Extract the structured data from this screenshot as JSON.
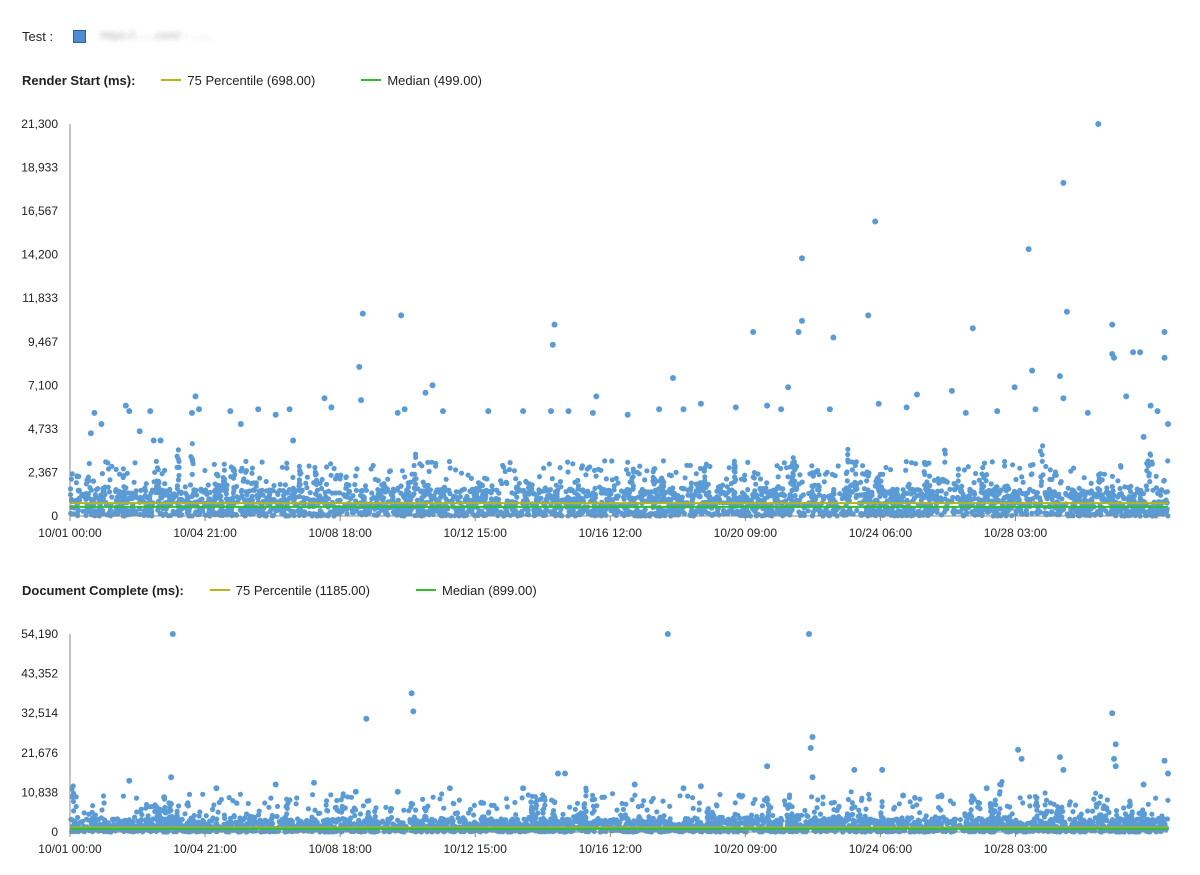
{
  "test": {
    "label": "Test :",
    "url": "https://......com/ - ......",
    "color": "#4f8bd1"
  },
  "chart_data": [
    {
      "type": "scatter",
      "title": "Render Start (ms):",
      "legend": [
        {
          "name": "75 Percentile (698.00)",
          "color": "#b5b516",
          "value": 698
        },
        {
          "name": "Median (499.00)",
          "color": "#2fbf2f",
          "value": 499
        }
      ],
      "ylim": [
        0,
        21300
      ],
      "yticks": [
        "0",
        "2,367",
        "4,733",
        "7,100",
        "9,467",
        "11,833",
        "14,200",
        "16,567",
        "18,933",
        "21,300"
      ],
      "xticks": [
        "10/01 00:00",
        "10/04 21:00",
        "10/08 18:00",
        "10/12 15:00",
        "10/16 12:00",
        "10/20 09:00",
        "10/24 06:00",
        "10/28 03:00"
      ],
      "xlim_days": [
        0,
        31.5
      ],
      "point_color": "#5b9bd5",
      "outliers": [
        [
          0.6,
          4500
        ],
        [
          0.7,
          5600
        ],
        [
          0.9,
          5000
        ],
        [
          1.6,
          6000
        ],
        [
          1.7,
          5700
        ],
        [
          2.0,
          4600
        ],
        [
          2.3,
          5700
        ],
        [
          2.4,
          4100
        ],
        [
          2.6,
          4100
        ],
        [
          3.6,
          6500
        ],
        [
          3.7,
          5800
        ],
        [
          3.5,
          5600
        ],
        [
          4.6,
          5700
        ],
        [
          4.9,
          5000
        ],
        [
          5.4,
          5800
        ],
        [
          5.9,
          5500
        ],
        [
          6.3,
          5800
        ],
        [
          6.4,
          4100
        ],
        [
          7.3,
          6400
        ],
        [
          7.5,
          5900
        ],
        [
          8.4,
          11000
        ],
        [
          8.3,
          8100
        ],
        [
          8.35,
          6300
        ],
        [
          9.5,
          10900
        ],
        [
          9.4,
          5600
        ],
        [
          9.6,
          5800
        ],
        [
          10.2,
          6700
        ],
        [
          10.4,
          7100
        ],
        [
          10.7,
          5700
        ],
        [
          12.0,
          5700
        ],
        [
          13.0,
          5700
        ],
        [
          13.9,
          10400
        ],
        [
          13.85,
          9300
        ],
        [
          13.8,
          5700
        ],
        [
          14.3,
          5700
        ],
        [
          15.1,
          6500
        ],
        [
          15.0,
          5600
        ],
        [
          16.0,
          5500
        ],
        [
          16.9,
          5800
        ],
        [
          17.3,
          7500
        ],
        [
          17.6,
          5800
        ],
        [
          18.1,
          6100
        ],
        [
          19.1,
          5900
        ],
        [
          19.6,
          10000
        ],
        [
          20.0,
          6000
        ],
        [
          20.4,
          5800
        ],
        [
          20.6,
          7000
        ],
        [
          21.0,
          14000
        ],
        [
          20.9,
          10000
        ],
        [
          21.0,
          10600
        ],
        [
          21.9,
          9700
        ],
        [
          21.8,
          5800
        ],
        [
          22.9,
          10900
        ],
        [
          23.1,
          16000
        ],
        [
          23.2,
          6100
        ],
        [
          24.0,
          5900
        ],
        [
          24.3,
          6600
        ],
        [
          25.3,
          6800
        ],
        [
          25.9,
          10200
        ],
        [
          25.7,
          5600
        ],
        [
          26.6,
          5700
        ],
        [
          27.1,
          7000
        ],
        [
          27.5,
          14500
        ],
        [
          27.6,
          7900
        ],
        [
          27.7,
          5800
        ],
        [
          28.5,
          18100
        ],
        [
          28.6,
          11100
        ],
        [
          28.4,
          7600
        ],
        [
          28.5,
          6400
        ],
        [
          29.5,
          21300
        ],
        [
          29.2,
          5600
        ],
        [
          29.9,
          10400
        ],
        [
          29.9,
          8800
        ],
        [
          29.95,
          8600
        ],
        [
          30.5,
          8900
        ],
        [
          30.7,
          8900
        ],
        [
          30.3,
          6500
        ],
        [
          31.0,
          6000
        ],
        [
          31.4,
          10000
        ],
        [
          31.4,
          8600
        ],
        [
          31.2,
          5700
        ],
        [
          30.8,
          4300
        ],
        [
          31.5,
          5000
        ]
      ]
    },
    {
      "type": "scatter",
      "title": "Document Complete (ms):",
      "legend": [
        {
          "name": "75 Percentile (1185.00)",
          "color": "#b5b516",
          "value": 1185
        },
        {
          "name": "Median (899.00)",
          "color": "#2fbf2f",
          "value": 899
        }
      ],
      "ylim": [
        0,
        54190
      ],
      "yticks": [
        "0",
        "10,838",
        "21,676",
        "32,514",
        "43,352",
        "54,190"
      ],
      "xticks": [
        "10/01 00:00",
        "10/04 21:00",
        "10/08 18:00",
        "10/12 15:00",
        "10/16 12:00",
        "10/20 09:00",
        "10/24 06:00",
        "10/28 03:00"
      ],
      "xlim_days": [
        0,
        31.5
      ],
      "point_color": "#5b9bd5",
      "outliers": [
        [
          2.95,
          54190
        ],
        [
          17.15,
          54190
        ],
        [
          21.2,
          54190
        ],
        [
          8.5,
          31000
        ],
        [
          9.8,
          38000
        ],
        [
          9.85,
          33000
        ],
        [
          1.7,
          14000
        ],
        [
          2.9,
          15000
        ],
        [
          2.7,
          9500
        ],
        [
          4.2,
          12000
        ],
        [
          5.9,
          13000
        ],
        [
          7.0,
          13500
        ],
        [
          8.2,
          11000
        ],
        [
          9.4,
          11000
        ],
        [
          10.9,
          12000
        ],
        [
          13.0,
          12000
        ],
        [
          14.0,
          16000
        ],
        [
          14.2,
          16000
        ],
        [
          16.2,
          13000
        ],
        [
          17.6,
          12000
        ],
        [
          18.1,
          12500
        ],
        [
          20.0,
          18000
        ],
        [
          21.3,
          26000
        ],
        [
          21.25,
          23000
        ],
        [
          21.3,
          15000
        ],
        [
          22.5,
          17000
        ],
        [
          23.3,
          17000
        ],
        [
          26.3,
          12000
        ],
        [
          27.2,
          22500
        ],
        [
          27.3,
          20000
        ],
        [
          28.4,
          20500
        ],
        [
          28.5,
          17000
        ],
        [
          29.9,
          32500
        ],
        [
          30.0,
          24000
        ],
        [
          29.95,
          20000
        ],
        [
          30.0,
          18000
        ],
        [
          30.8,
          13000
        ],
        [
          31.4,
          19500
        ],
        [
          31.5,
          16000
        ],
        [
          25.0,
          10000
        ],
        [
          23.9,
          10000
        ],
        [
          19.2,
          10000
        ],
        [
          11.8,
          8000
        ]
      ]
    }
  ]
}
